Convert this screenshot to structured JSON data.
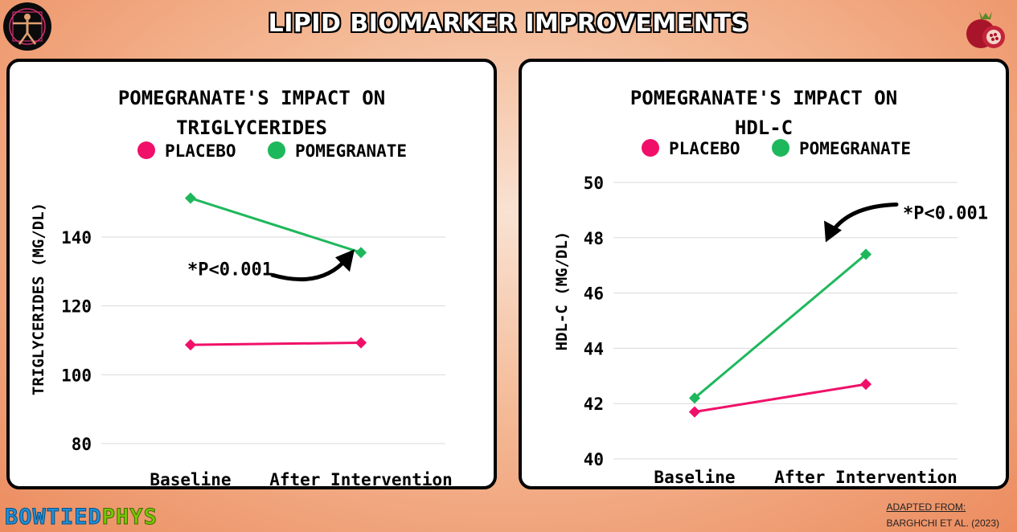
{
  "header": {
    "title": "LIPID BIOMARKER IMPROVEMENTS"
  },
  "colors": {
    "placebo": "#f0106a",
    "pomegranate": "#1eb85c",
    "frame": "#000000"
  },
  "icons": {
    "left_logo": "vitruvian-man-icon",
    "right_logo": "pomegranate-icon"
  },
  "footer": {
    "brand_part1": "BOWTIED",
    "brand_part2": "PHYS",
    "source_line1": "ADAPTED FROM:",
    "source_line2": "BARGHCHI ET AL. (2023)"
  },
  "chart_data": [
    {
      "type": "line",
      "title": [
        "POMEGRANATE'S IMPACT ON",
        "TRIGLYCERIDES"
      ],
      "ylabel": "TRIGLYCERIDES (MG/DL)",
      "categories": [
        "Baseline",
        "After Intervention"
      ],
      "yticks": [
        80,
        100,
        120,
        140
      ],
      "ylim": [
        80,
        140
      ],
      "legend": "top",
      "grid": true,
      "series": [
        {
          "name": "Placebo",
          "values": [
            108.7,
            109.3
          ]
        },
        {
          "name": "Pomegranate",
          "values": [
            151.3,
            135.5
          ]
        }
      ],
      "annotation": {
        "text": "*P<0.001",
        "target": "Pomegranate After Intervention"
      }
    },
    {
      "type": "line",
      "title": [
        "POMEGRANATE'S IMPACT ON",
        "HDL-C"
      ],
      "ylabel": "HDL-C (MG/DL)",
      "categories": [
        "Baseline",
        "After Intervention"
      ],
      "yticks": [
        40,
        42,
        44,
        46,
        48,
        50
      ],
      "ylim": [
        40,
        50
      ],
      "legend": "top",
      "grid": true,
      "series": [
        {
          "name": "Placebo",
          "values": [
            41.7,
            42.7
          ]
        },
        {
          "name": "pomegranate",
          "values": [
            42.2,
            47.4
          ]
        }
      ],
      "annotation": {
        "text": "*P<0.001",
        "target": "pomegranate After Intervention"
      }
    }
  ]
}
